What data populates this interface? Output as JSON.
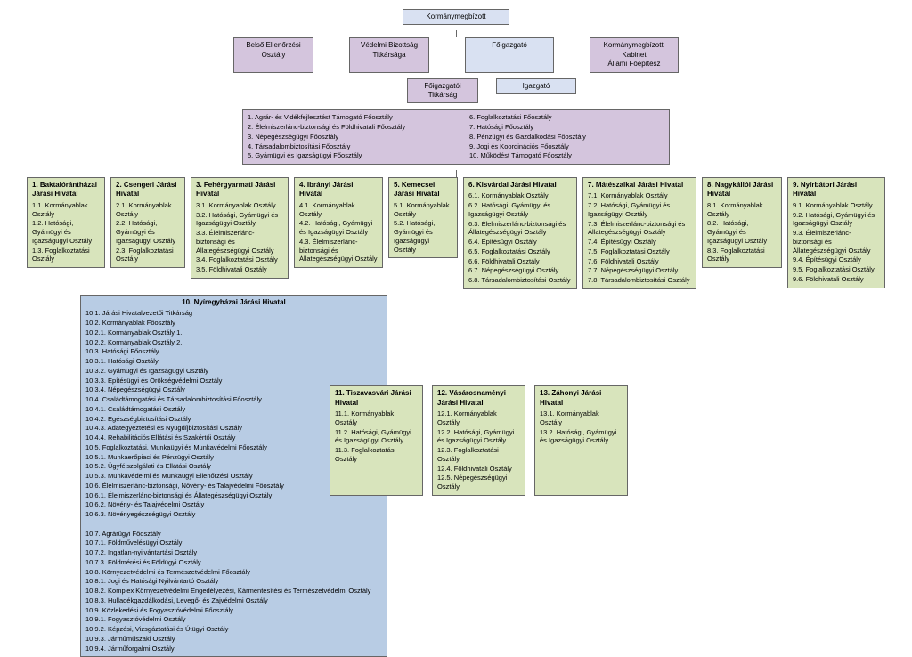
{
  "colors": {
    "purple": "#d4c5dd",
    "lightblue": "#d9e1f2",
    "green": "#d8e4bc",
    "blue": "#b8cce4",
    "border": "#666666",
    "bg": "#ffffff"
  },
  "top": {
    "title": "Kormánymegbízott"
  },
  "level2": {
    "a": "Belső Ellenőrzési\nOsztály",
    "b": "Védelmi Bizottság\nTitkársága",
    "c": "Főigazgató",
    "d": "Kormánymegbízotti\nKabinet\nÁllami Főépítész"
  },
  "level3": {
    "a": "Főigazgatói\nTitkárság",
    "b": "Igazgató"
  },
  "depts": {
    "left": [
      "1. Agrár- és Vidékfejlesztést Támogató Főosztály",
      "2. Élelmiszerlánc-biztonsági és Földhivatali Főosztály",
      "3. Népegészségügyi Főosztály",
      "4. Társadalombiztosítási Főosztály",
      "5. Gyámügyi és Igazságügyi Főosztály"
    ],
    "right": [
      "6. Foglalkoztatási Főosztály",
      "7. Hatósági Főosztály",
      "8. Pénzügyi és Gazdálkodási Főosztály",
      "9. Jogi és Koordinációs Főosztály",
      "10. Működést Támogató Főosztály"
    ]
  },
  "offices": [
    {
      "title": "1. Baktalórántházai Járási Hivatal",
      "items": [
        "1.1. Kormányablak Osztály",
        "1.2. Hatósági, Gyámügyi és Igazságügyi Osztály",
        "1.3. Foglalkoztatási Osztály"
      ]
    },
    {
      "title": "2. Csengeri Járási Hivatal",
      "items": [
        "2.1. Kormányablak Osztály",
        "2.2. Hatósági, Gyámügyi és Igazságügyi Osztály",
        "2.3. Foglalkoztatási Osztály"
      ]
    },
    {
      "title": "3. Fehérgyarmati Járási Hivatal",
      "items": [
        "3.1. Kormányablak Osztály",
        "3.2. Hatósági, Gyámügyi és Igazságügyi Osztály",
        "3.3. Élelmiszerlánc-biztonsági és Állategészségügyi Osztály",
        "3.4. Foglalkoztatási Osztály",
        "3.5. Földhivatali Osztály"
      ]
    },
    {
      "title": "4. Ibrányi Járási Hivatal",
      "items": [
        "4.1. Kormányablak Osztály",
        "4.2. Hatósági, Gyámügyi és Igazságügyi Osztály",
        "4.3. Élelmiszerlánc-biztonsági és Állategészségügyi Osztály"
      ]
    },
    {
      "title": "5. Kemecsei Járási Hivatal",
      "items": [
        "5.1. Kormányablak Osztály",
        "5.2. Hatósági, Gyámügyi és Igazságügyi Osztály"
      ]
    },
    {
      "title": "6. Kisvárdai Járási Hivatal",
      "items": [
        "6.1. Kormányablak Osztály",
        "6.2. Hatósági, Gyámügyi és Igazságügyi Osztály",
        "6.3. Élelmiszerlánc-biztonsági és Állategészségügyi Osztály",
        "6.4. Építésügyi Osztály",
        "6.5. Foglalkoztatási Osztály",
        "6.6. Földhivatali Osztály",
        "6.7. Népegészségügyi Osztály",
        "6.8. Társadalombiztosítási Osztály"
      ]
    },
    {
      "title": "7. Mátészalkai Járási Hivatal",
      "items": [
        "7.1. Kormányablak Osztály",
        "7.2. Hatósági, Gyámügyi és Igazságügyi Osztály",
        "7.3. Élelmiszerlánc-biztonsági és Állategészségügyi Osztály",
        "7.4. Építésügyi Osztály",
        "7.5. Foglalkoztatási Osztály",
        "7.6. Földhivatali Osztály",
        "7.7. Népegészségügyi Osztály",
        "7.8. Társadalombiztosítási Osztály"
      ]
    },
    {
      "title": "8. Nagykállói Járási Hivatal",
      "items": [
        "8.1. Kormányablak Osztály",
        "8.2. Hatósági, Gyámügyi és Igazságügyi Osztály",
        "8.3. Foglalkoztatási Osztály"
      ]
    },
    {
      "title": "9. Nyírbátori Járási Hivatal",
      "items": [
        "9.1. Kormányablak Osztály",
        "9.2. Hatósági, Gyámügyi és Igazságügyi Osztály",
        "9.3. Élelmiszerlánc-biztonsági és Állategészségügyi Osztály",
        "9.4. Építésügyi Osztály",
        "9.5. Foglalkoztatási Osztály",
        "9.6. Földhivatali Osztály"
      ]
    }
  ],
  "office10": {
    "title": "10. Nyíregyházai Járási Hivatal",
    "items": [
      "10.1. Járási Hivatalvezetői Titkárság",
      "10.2. Kormányablak Főosztály",
      "10.2.1. Kormányablak Osztály 1.",
      "10.2.2. Kormányablak Osztály 2.",
      "10.3. Hatósági Főosztály",
      "10.3.1. Hatósági Osztály",
      "10.3.2. Gyámügyi és Igazságügyi Osztály",
      "10.3.3. Építésügyi és Örökségvédelmi Osztály",
      "10.3.4. Népegészségügyi Osztály",
      "10.4. Családtámogatási és Társadalombiztosítási Főosztály",
      "10.4.1. Családtámogatási Osztály",
      "10.4.2. Egészségbiztosítási Osztály",
      "10.4.3. Adategyeztetési és Nyugdíjbiztosítási Osztály",
      "10.4.4. Rehabilitációs Ellátási és Szakértői Osztály",
      "10.5. Foglalkoztatási, Munkaügyi és Munkavédelmi Főosztály",
      "10.5.1. Munkaerőpiaci és Pénzügyi Osztály",
      "10.5.2. Ügyfélszolgálati és Ellátási Osztály",
      "10.5.3. Munkavédelmi és Munkaügyi Ellenőrzési Osztály",
      "10.6. Élelmiszerlánc-biztonsági, Növény- és Talajvédelmi Főosztály",
      "10.6.1. Élelmiszerlánc-biztonsági és Állategészségügyi Osztály",
      "10.6.2. Növény- és Talajvédelmi Osztály",
      "10.6.3. Növényegészségügyi Osztály",
      "",
      "10.7. Agrárügyi Főosztály",
      "10.7.1. Földművelésügyi Osztály",
      "10.7.2. Ingatlan-nyilvántartási Osztály",
      "10.7.3. Földmérési és Földügyi Osztály",
      "10.8. Környezetvédelmi és Természetvédelmi Főosztály",
      "10.8.1. Jogi és Hatósági Nyilvántartó Osztály",
      "10.8.2. Komplex Környezetvédelmi Engedélyezési, Kármentesítési és Természetvédelmi Osztály",
      "10.8.3. Hulladékgazdálkodási, Levegő- és Zajvédelmi Osztály",
      "10.9. Közlekedési és Fogyasztóvédelmi Főosztály",
      "10.9.1. Fogyasztóvédelmi Osztály",
      "10.9.2. Képzési, Vizsgáztatási és Útügyi Osztály",
      "10.9.3. Járműműszaki Osztály",
      "10.9.4. Járműforgalmi Osztály"
    ]
  },
  "offices_bottom": [
    {
      "title": "11. Tiszavasvári Járási Hivatal",
      "items": [
        "11.1. Kormányablak Osztály",
        "11.2. Hatósági, Gyámügyi és Igazságügyi Osztály",
        "11.3. Foglalkoztatási Osztály"
      ]
    },
    {
      "title": "12. Vásárosnaményi Járási Hivatal",
      "items": [
        "12.1. Kormányablak Osztály",
        "12.2. Hatósági, Gyámügyi és Igazságügyi Osztály",
        "12.3. Foglalkoztatási Osztály",
        "12.4. Földhivatali Osztály",
        "12.5. Népegészségügyi Osztály"
      ]
    },
    {
      "title": "13. Záhonyi Járási Hivatal",
      "items": [
        "13.1. Kormányablak Osztály",
        "13.2. Hatósági, Gyámügyi és Igazságügyi Osztály"
      ]
    }
  ]
}
